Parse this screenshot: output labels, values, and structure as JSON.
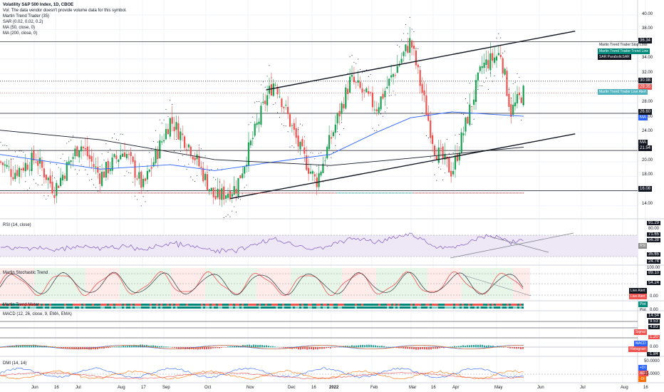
{
  "legend": {
    "title": "Volatility S&P 500 Index, 1D, CBOE",
    "vol_note": "Vol: The data vendor doesn't provide volume data for this symbol.",
    "indicator1": "Martin Trend Trader (35)",
    "indicator2": "SAR (0.02, 0.02, 0.2)",
    "indicator3": "MA (50, close, 0)",
    "indicator4": "MA (200, close, 0)"
  },
  "pane_titles": {
    "rsi": "RSI (14, close)",
    "stoch": "Martin Stochastic Trend",
    "meter": "Martin Trend Meter",
    "macd": "MACD (12, 26, close, 9, EMA, EMA)",
    "dmi": "DMI (14, 14)"
  },
  "price_labels": [
    {
      "text": "36.34",
      "color": "#131722"
    },
    {
      "text": "30.98",
      "color": "#131722"
    },
    {
      "text": "29.35",
      "color": "#ef5350"
    },
    {
      "text": "26.60",
      "color": "#131722"
    },
    {
      "text": "MA",
      "color": "#2962ff"
    },
    {
      "text": "MA",
      "color": "#131722"
    },
    {
      "text": "21.54",
      "color": "#131722"
    },
    {
      "text": "16.08",
      "color": "#131722"
    }
  ],
  "right_labels": {
    "stop_loss": "Martin Trend Trader:Stop Loss",
    "trend_line": "Martin Trend Trader:Trend Line",
    "sar": "SAR:ParabolicSAR",
    "live_alert": "Martin Trend Trader Live Alert",
    "rsi_tag": "RSI",
    "stoch_alert1": "Live Alert",
    "stoch_alert2": "Live Alert",
    "meter_plot": "Plot",
    "meter_plot_small": "Plot",
    "macd_signal": "Signal",
    "macd_macd": "MACD",
    "macd_hist": "Histogram",
    "dmi_plus": "+DI",
    "dmi_adx": "ADX",
    "dmi_minus": "-DI"
  },
  "main_axis": [
    "40.00",
    "38.00",
    "34.00",
    "32.00",
    "28.00",
    "26.00",
    "24.00",
    "20.00",
    "18.00",
    "14.00"
  ],
  "rsi_axis": [
    "91.29",
    "80.00",
    "71.65",
    "56.38",
    "35.65",
    "24.74"
  ],
  "stoch_axis": [
    "100.00",
    "89.10",
    "54.24",
    "0.00"
  ],
  "meter_axis": [
    "0.00"
  ],
  "macd_axis": [
    "14.54",
    "9.53",
    "4.83",
    "1.20",
    "0.00",
    "-1.84"
  ],
  "dmi_axis": [
    "50.0000",
    "25.0000"
  ],
  "x_axis": [
    "Jun",
    "16",
    "Jul",
    "Aug",
    "17",
    "Sep",
    "Oct",
    "Nov",
    "Dec",
    "16",
    "2022",
    "Feb",
    "Mar",
    "16",
    "Apr",
    "May",
    "Jun",
    "Jul",
    "Aug",
    "16"
  ],
  "colors": {
    "up": "#26a69a",
    "down": "#ef5350",
    "up_strong": "#1aa152",
    "sar": "#131722",
    "ma50": "#2962ff",
    "ma200": "#131722",
    "rsi": "#7e57c2",
    "rsi_band": "#ede7f6",
    "stoch_k": "#ef5350",
    "stoch_d": "#131722",
    "meter_teal": "#00897b",
    "meter_red": "#ef5350",
    "macd_line": "#2962ff",
    "macd_signal": "#ff6d00",
    "dmi_plus": "#2962ff",
    "dmi_adx": "#ef5350",
    "dmi_minus": "#ff6d00"
  },
  "chart_data": {
    "type": "line",
    "symbol": "Volatility S&P 500 Index",
    "interval": "1D",
    "exchange": "CBOE",
    "ylim": [
      14,
      40
    ],
    "key_levels": [
      36.34,
      30.98,
      29.35,
      26.6,
      21.54,
      16.08
    ],
    "channel": {
      "upper": [
        {
          "date": "2021-11-26",
          "value": 29.8
        },
        {
          "date": "2022-06-30",
          "value": 37.8
        }
      ],
      "lower": [
        {
          "date": "2021-11-01",
          "value": 15.0
        },
        {
          "date": "2022-06-30",
          "value": 23.8
        }
      ]
    },
    "close_path": [
      {
        "date": "2021-05-24",
        "value": 20.0
      },
      {
        "date": "2021-06-02",
        "value": 18.5
      },
      {
        "date": "2021-06-18",
        "value": 20.5
      },
      {
        "date": "2021-07-01",
        "value": 16.2
      },
      {
        "date": "2021-07-19",
        "value": 22.5
      },
      {
        "date": "2021-08-02",
        "value": 18.0
      },
      {
        "date": "2021-08-19",
        "value": 21.6
      },
      {
        "date": "2021-09-01",
        "value": 16.5
      },
      {
        "date": "2021-09-20",
        "value": 25.7
      },
      {
        "date": "2021-10-04",
        "value": 22.0
      },
      {
        "date": "2021-10-21",
        "value": 15.0
      },
      {
        "date": "2021-11-05",
        "value": 16.5
      },
      {
        "date": "2021-11-26",
        "value": 28.6
      },
      {
        "date": "2021-12-02",
        "value": 31.1
      },
      {
        "date": "2021-12-20",
        "value": 21.5
      },
      {
        "date": "2021-12-31",
        "value": 17.2
      },
      {
        "date": "2022-01-24",
        "value": 31.2
      },
      {
        "date": "2022-02-11",
        "value": 27.4
      },
      {
        "date": "2022-03-07",
        "value": 36.5
      },
      {
        "date": "2022-03-24",
        "value": 21.7
      },
      {
        "date": "2022-04-05",
        "value": 18.6
      },
      {
        "date": "2022-04-26",
        "value": 33.0
      },
      {
        "date": "2022-05-09",
        "value": 34.8
      },
      {
        "date": "2022-05-16",
        "value": 26.8
      },
      {
        "date": "2022-05-25",
        "value": 29.5
      }
    ],
    "ma50_path": [
      {
        "date": "2021-05-24",
        "value": 21.0
      },
      {
        "date": "2021-08-02",
        "value": 19.0
      },
      {
        "date": "2021-09-20",
        "value": 19.6
      },
      {
        "date": "2021-10-21",
        "value": 18.8
      },
      {
        "date": "2021-12-02",
        "value": 20.0
      },
      {
        "date": "2022-01-10",
        "value": 21.0
      },
      {
        "date": "2022-02-11",
        "value": 24.0
      },
      {
        "date": "2022-03-07",
        "value": 26.0
      },
      {
        "date": "2022-04-05",
        "value": 26.8
      },
      {
        "date": "2022-05-25",
        "value": 26.2
      }
    ],
    "ma200_path": [
      {
        "date": "2021-05-24",
        "value": 24.3
      },
      {
        "date": "2021-08-02",
        "value": 23.0
      },
      {
        "date": "2021-10-21",
        "value": 20.3
      },
      {
        "date": "2022-01-10",
        "value": 19.5
      },
      {
        "date": "2022-03-07",
        "value": 20.5
      },
      {
        "date": "2022-05-25",
        "value": 22.0
      }
    ]
  }
}
